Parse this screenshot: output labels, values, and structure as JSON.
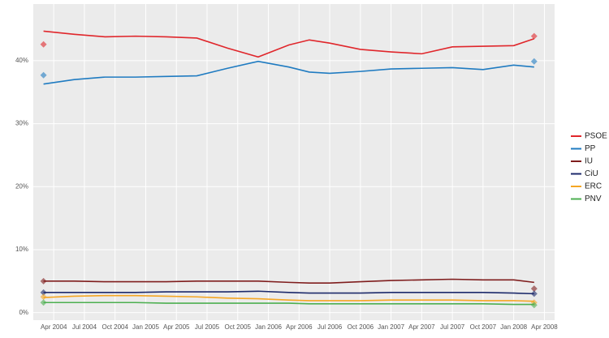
{
  "chart_data": {
    "type": "line",
    "x": [
      "2004-03",
      "2004-06",
      "2004-09",
      "2004-12",
      "2005-03",
      "2005-06",
      "2005-09",
      "2005-12",
      "2006-03",
      "2006-05",
      "2006-07",
      "2006-10",
      "2007-01",
      "2007-04",
      "2007-07",
      "2007-10",
      "2008-01",
      "2008-03"
    ],
    "series": [
      {
        "name": "PSOE",
        "color": "#e0262b",
        "values": [
          44.7,
          44.2,
          43.8,
          43.9,
          43.8,
          43.6,
          42.0,
          40.6,
          42.5,
          43.3,
          42.8,
          41.8,
          41.4,
          41.1,
          42.2,
          42.3,
          42.4,
          43.5
        ],
        "results": [
          42.6,
          43.9
        ]
      },
      {
        "name": "PP",
        "color": "#1f7bc1",
        "values": [
          36.3,
          37.0,
          37.4,
          37.4,
          37.5,
          37.6,
          38.8,
          39.9,
          39.0,
          38.2,
          38.0,
          38.3,
          38.7,
          38.8,
          38.9,
          38.6,
          39.3,
          39.0
        ],
        "results": [
          37.7,
          39.9
        ]
      },
      {
        "name": "IU",
        "color": "#7f1d1d",
        "values": [
          5.0,
          5.0,
          4.9,
          4.9,
          4.9,
          5.0,
          5.0,
          5.0,
          4.8,
          4.7,
          4.7,
          4.9,
          5.1,
          5.2,
          5.3,
          5.2,
          5.2,
          4.8
        ],
        "results": [
          5.0,
          3.8
        ]
      },
      {
        "name": "CiU",
        "color": "#1c2a6b",
        "values": [
          3.2,
          3.2,
          3.2,
          3.2,
          3.3,
          3.3,
          3.3,
          3.4,
          3.2,
          3.1,
          3.1,
          3.1,
          3.2,
          3.2,
          3.2,
          3.2,
          3.1,
          3.0
        ],
        "results": [
          3.2,
          3.0
        ]
      },
      {
        "name": "ERC",
        "color": "#f5a623",
        "values": [
          2.4,
          2.6,
          2.7,
          2.7,
          2.6,
          2.5,
          2.3,
          2.2,
          2.0,
          1.9,
          1.9,
          1.9,
          2.0,
          2.0,
          2.0,
          1.9,
          1.9,
          1.8
        ],
        "results": [
          2.5,
          1.6
        ]
      },
      {
        "name": "PNV",
        "color": "#4caf50",
        "values": [
          1.6,
          1.6,
          1.6,
          1.6,
          1.5,
          1.5,
          1.5,
          1.5,
          1.5,
          1.4,
          1.4,
          1.4,
          1.4,
          1.4,
          1.4,
          1.4,
          1.3,
          1.3
        ],
        "results": [
          1.6,
          1.2
        ]
      }
    ],
    "results_x": [
      "2004-03",
      "2008-03"
    ],
    "xlim": [
      "2004-02",
      "2008-05"
    ],
    "xticks": [
      {
        "value": "2004-04",
        "label": "Apr 2004"
      },
      {
        "value": "2004-07",
        "label": "Jul 2004"
      },
      {
        "value": "2004-10",
        "label": "Oct 2004"
      },
      {
        "value": "2005-01",
        "label": "Jan 2005"
      },
      {
        "value": "2005-04",
        "label": "Apr 2005"
      },
      {
        "value": "2005-07",
        "label": "Jul 2005"
      },
      {
        "value": "2005-10",
        "label": "Oct 2005"
      },
      {
        "value": "2006-01",
        "label": "Jan 2006"
      },
      {
        "value": "2006-04",
        "label": "Apr 2006"
      },
      {
        "value": "2006-07",
        "label": "Jul 2006"
      },
      {
        "value": "2006-10",
        "label": "Oct 2006"
      },
      {
        "value": "2007-01",
        "label": "Jan 2007"
      },
      {
        "value": "2007-04",
        "label": "Apr 2007"
      },
      {
        "value": "2007-07",
        "label": "Jul 2007"
      },
      {
        "value": "2007-10",
        "label": "Oct 2007"
      },
      {
        "value": "2008-01",
        "label": "Jan 2008"
      },
      {
        "value": "2008-04",
        "label": "Apr 2008"
      }
    ],
    "ylim": [
      -1.2,
      49
    ],
    "yticks": [
      {
        "value": 0,
        "label": "0%"
      },
      {
        "value": 10,
        "label": "10%"
      },
      {
        "value": 20,
        "label": "20%"
      },
      {
        "value": 30,
        "label": "30%"
      },
      {
        "value": 40,
        "label": "40%"
      }
    ],
    "grid": true,
    "legend": "right"
  }
}
